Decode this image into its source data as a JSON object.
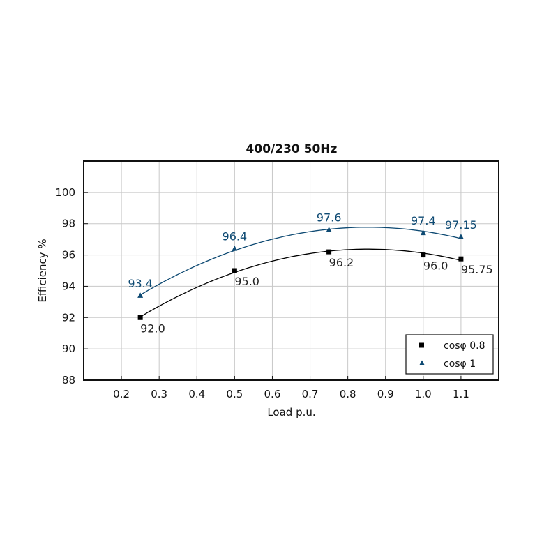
{
  "chart_data": {
    "type": "line",
    "title": "400/230 50Hz",
    "xlabel": "Load p.u.",
    "ylabel": "Efficiency %",
    "xlim": [
      0.1,
      1.2
    ],
    "ylim": [
      88,
      102
    ],
    "xticks": [
      "0.2",
      "0.3",
      "0.4",
      "0.5",
      "0.6",
      "0.7",
      "0.8",
      "0.9",
      "1.0",
      "1.1"
    ],
    "yticks": [
      "88",
      "90",
      "92",
      "94",
      "96",
      "98",
      "100"
    ],
    "grid": true,
    "legend_position": "bottom-right",
    "series": [
      {
        "name": "cosφ 0.8",
        "marker": "square",
        "color": "#000000",
        "x": [
          0.25,
          0.5,
          0.75,
          1.0,
          1.1
        ],
        "y": [
          92.0,
          95.0,
          96.2,
          96.0,
          95.75
        ],
        "labels": [
          "92.0",
          "95.0",
          "96.2",
          "96.0",
          "95.75"
        ]
      },
      {
        "name": "cosφ 1",
        "marker": "triangle",
        "color": "#0e4a73",
        "x": [
          0.25,
          0.5,
          0.75,
          1.0,
          1.1
        ],
        "y": [
          93.4,
          96.4,
          97.6,
          97.4,
          97.15
        ],
        "labels": [
          "93.4",
          "96.4",
          "97.6",
          "97.4",
          "97.15"
        ]
      }
    ]
  }
}
